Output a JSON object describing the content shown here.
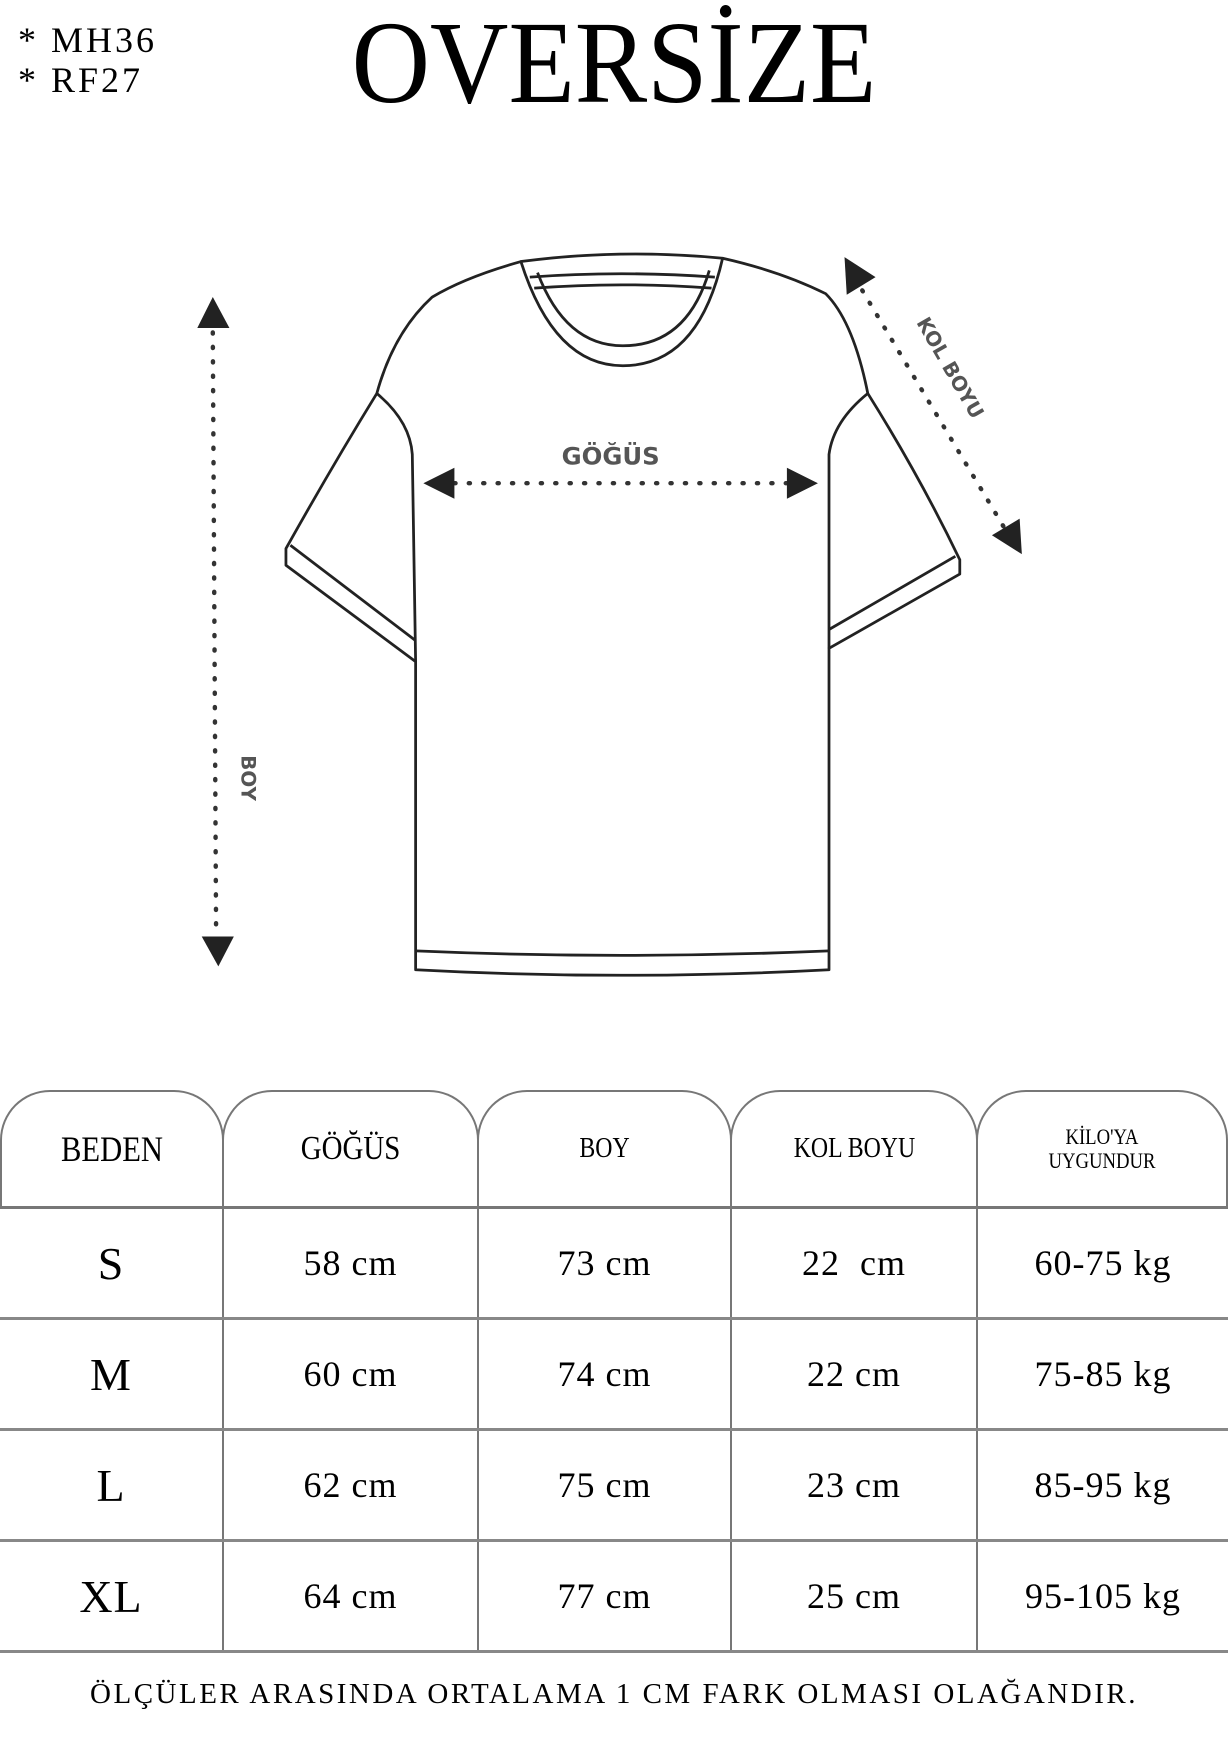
{
  "codes": [
    "* MH36",
    "* RF27"
  ],
  "title": "OVERSİZE",
  "diagram": {
    "chest_label": "GÖĞÜS",
    "length_label": "BOY",
    "sleeve_label": "KOL BOYU"
  },
  "table": {
    "headers": [
      "BEDEN",
      "GÖĞÜS",
      "BOY",
      "KOL BOYU",
      "KİLO'YA UYGUNDUR"
    ],
    "header_kilo_lines": [
      "KİLO'YA",
      "UYGUNDUR"
    ],
    "rows": [
      [
        "S",
        "58 cm",
        "73 cm",
        "22  cm",
        "60-75 kg"
      ],
      [
        "M",
        "60 cm",
        "74 cm",
        "22 cm",
        "75-85 kg"
      ],
      [
        "L",
        "62 cm",
        "75 cm",
        "23 cm",
        "85-95 kg"
      ],
      [
        "XL",
        "64 cm",
        "77 cm",
        "25 cm",
        "95-105 kg"
      ]
    ]
  },
  "footer": "ÖLÇÜLER ARASINDA ORTALAMA 1 CM FARK OLMASI OLAĞANDIR."
}
